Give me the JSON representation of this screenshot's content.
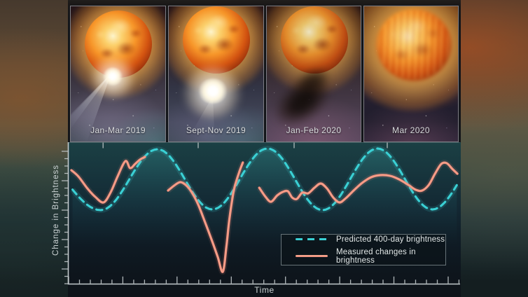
{
  "panels": [
    {
      "label": "Jan-Mar 2019",
      "feature": "bright-outburst-with-light-rays"
    },
    {
      "label": "Sept-Nov 2019",
      "feature": "detached-bright-ejected-gas-cloud"
    },
    {
      "label": "Jan-Feb 2020",
      "feature": "dark-dust-cloud-dimming-star"
    },
    {
      "label": "Mar 2020",
      "feature": "blurred-hazy-star"
    }
  ],
  "chart_data": {
    "type": "line",
    "title": "",
    "xlabel": "Time",
    "ylabel": "Change in Brightness",
    "x_range": [
      0,
      100
    ],
    "y_range": [
      0,
      100
    ],
    "grid": false,
    "legend_position": "lower-right",
    "series": [
      {
        "name": "Predicted 400-day brightness",
        "style": "dashed",
        "color": "#3ad0d4",
        "shape": "sinusoid-through-extrema",
        "extrema_t_b": [
          [
            -8,
            88
          ],
          [
            8.2,
            52.5
          ],
          [
            22.7,
            96
          ],
          [
            36.7,
            53
          ],
          [
            50.8,
            96.5
          ],
          [
            64.9,
            52.5
          ],
          [
            78.9,
            96.5
          ],
          [
            92.9,
            53
          ],
          [
            107,
            95
          ]
        ],
        "clip_t": [
          0.4,
          99.8
        ],
        "fill_below": true
      },
      {
        "name": "Measured changes in brightness",
        "style": "solid",
        "color": "#ec8a7a",
        "segments_t_b": [
          [
            [
              0.7,
              81
            ],
            [
              2.5,
              76.5
            ],
            [
              4.8,
              68
            ],
            [
              6.8,
              62
            ],
            [
              8.9,
              58
            ],
            [
              10.7,
              65
            ],
            [
              12.5,
              76.5
            ],
            [
              14.5,
              87.5
            ],
            [
              15.7,
              82.5
            ],
            [
              17,
              85.5
            ],
            [
              18.2,
              88.5
            ],
            [
              19.5,
              90.5
            ]
          ],
          [
            [
              25.4,
              66.5
            ],
            [
              27.2,
              70.5
            ],
            [
              28.6,
              72.5
            ],
            [
              30.1,
              70
            ],
            [
              31.5,
              65
            ],
            [
              33.1,
              56.5
            ],
            [
              34.9,
              43.5
            ],
            [
              36.7,
              30
            ],
            [
              38.1,
              19
            ],
            [
              39.4,
              8.5
            ],
            [
              40.3,
              26.5
            ],
            [
              41.1,
              46.5
            ],
            [
              42.2,
              66.5
            ],
            [
              43.5,
              79
            ],
            [
              44.5,
              86.5
            ]
          ],
          [
            [
              48.7,
              68.5
            ],
            [
              50.3,
              62
            ],
            [
              51.7,
              58.5
            ],
            [
              53.3,
              63
            ],
            [
              54.7,
              65.5
            ],
            [
              56,
              66
            ],
            [
              57.1,
              61.5
            ],
            [
              58.3,
              60.5
            ],
            [
              59.7,
              65
            ],
            [
              61.2,
              64.5
            ],
            [
              62.8,
              68.5
            ],
            [
              64.4,
              71.5
            ],
            [
              66,
              68
            ],
            [
              67.6,
              61.5
            ],
            [
              69.2,
              58
            ],
            [
              70.8,
              61
            ],
            [
              72.8,
              66.5
            ],
            [
              75,
              72
            ],
            [
              77.3,
              76
            ],
            [
              79.6,
              77.5
            ],
            [
              82.1,
              77
            ],
            [
              84.4,
              74.5
            ],
            [
              86.8,
              70.5
            ],
            [
              88.7,
              67
            ],
            [
              90.3,
              66.5
            ],
            [
              92,
              70.5
            ],
            [
              93.6,
              78.5
            ],
            [
              95.2,
              85.5
            ],
            [
              96.6,
              86
            ],
            [
              98,
              82
            ],
            [
              99.3,
              78.5
            ]
          ]
        ]
      }
    ],
    "event_ticks_t": [
      8.8,
      33.1,
      57.6,
      81.4
    ],
    "axes_style": {
      "x_minor_spacing_t": 2.77,
      "x_major_every": 5,
      "y_minor_spacing_b": 5.25,
      "y_major_every": 4,
      "tick_direction": {
        "x": "in",
        "y": "out"
      }
    }
  },
  "colors": {
    "predicted": "#3ad0d4",
    "measured": "#ec8a7a",
    "measured_highlight": "#f8ab92",
    "fill_teal": "rgba(64,178,178,0.30)",
    "axis": "#c2c9cb",
    "legend_border": "#a5b2b7",
    "legend_text": "#e3e8e8",
    "caption_text": "#d9dbdd"
  }
}
